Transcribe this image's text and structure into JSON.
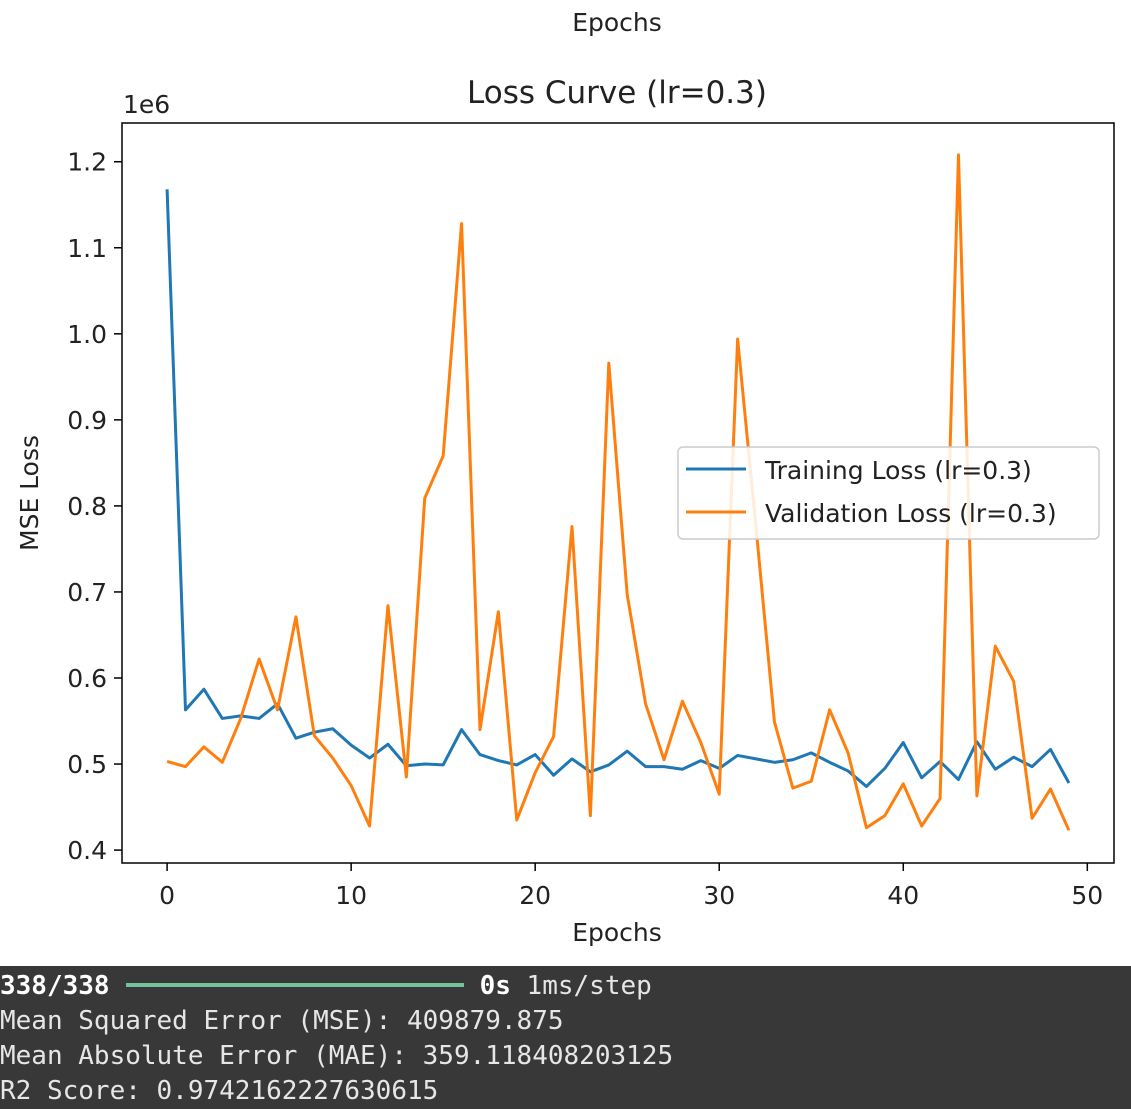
{
  "top_label": "Epochs",
  "chart_data": {
    "type": "line",
    "title": "Loss Curve (lr=0.3)",
    "xlabel": "Epochs",
    "ylabel": "MSE Loss",
    "offset_text": "1e6",
    "xlim": [
      -2.45,
      51.45
    ],
    "ylim": [
      0.385,
      1.245
    ],
    "x_ticks": [
      0,
      10,
      20,
      30,
      40,
      50
    ],
    "y_ticks": [
      0.4,
      0.5,
      0.6,
      0.7,
      0.8,
      0.9,
      1.0,
      1.1,
      1.2
    ],
    "y_tick_labels": [
      "0.4",
      "0.5",
      "0.6",
      "0.7",
      "0.8",
      "0.9",
      "1.0",
      "1.1",
      "1.2"
    ],
    "grid": false,
    "legend_position": "center-right",
    "x": [
      0,
      1,
      2,
      3,
      4,
      5,
      6,
      7,
      8,
      9,
      10,
      11,
      12,
      13,
      14,
      15,
      16,
      17,
      18,
      19,
      20,
      21,
      22,
      23,
      24,
      25,
      26,
      27,
      28,
      29,
      30,
      31,
      32,
      33,
      34,
      35,
      36,
      37,
      38,
      39,
      40,
      41,
      42,
      43,
      44,
      45,
      46,
      47,
      48,
      49
    ],
    "series": [
      {
        "name": "Training Loss (lr=0.3)",
        "color": "#1f77b4",
        "values": [
          1.168,
          0.563,
          0.587,
          0.553,
          0.556,
          0.553,
          0.57,
          0.53,
          0.537,
          0.541,
          0.522,
          0.507,
          0.523,
          0.498,
          0.5,
          0.499,
          0.54,
          0.511,
          0.504,
          0.499,
          0.511,
          0.487,
          0.506,
          0.491,
          0.499,
          0.515,
          0.497,
          0.497,
          0.494,
          0.504,
          0.495,
          0.51,
          0.506,
          0.502,
          0.505,
          0.513,
          0.502,
          0.492,
          0.474,
          0.495,
          0.525,
          0.484,
          0.503,
          0.482,
          0.526,
          0.494,
          0.508,
          0.497,
          0.517,
          0.478
        ]
      },
      {
        "name": "Validation Loss (lr=0.3)",
        "color": "#ff7f0e",
        "values": [
          0.503,
          0.497,
          0.52,
          0.502,
          0.553,
          0.622,
          0.563,
          0.671,
          0.533,
          0.507,
          0.475,
          0.428,
          0.684,
          0.485,
          0.809,
          0.858,
          1.128,
          0.54,
          0.677,
          0.435,
          0.49,
          0.532,
          0.776,
          0.44,
          0.966,
          0.697,
          0.57,
          0.505,
          0.573,
          0.525,
          0.465,
          0.994,
          0.775,
          0.549,
          0.472,
          0.48,
          0.563,
          0.513,
          0.426,
          0.44,
          0.477,
          0.428,
          0.46,
          1.208,
          0.463,
          0.637,
          0.596,
          0.437,
          0.471,
          0.423
        ]
      }
    ]
  },
  "output": {
    "progress_count": "338/338",
    "progress_time": "0s",
    "progress_step": "1ms/step",
    "mse_line": "Mean Squared Error (MSE): 409879.875",
    "mae_line": "Mean Absolute Error (MAE): 359.118408203125",
    "r2_line": "R2 Score: 0.9742162227630615"
  }
}
